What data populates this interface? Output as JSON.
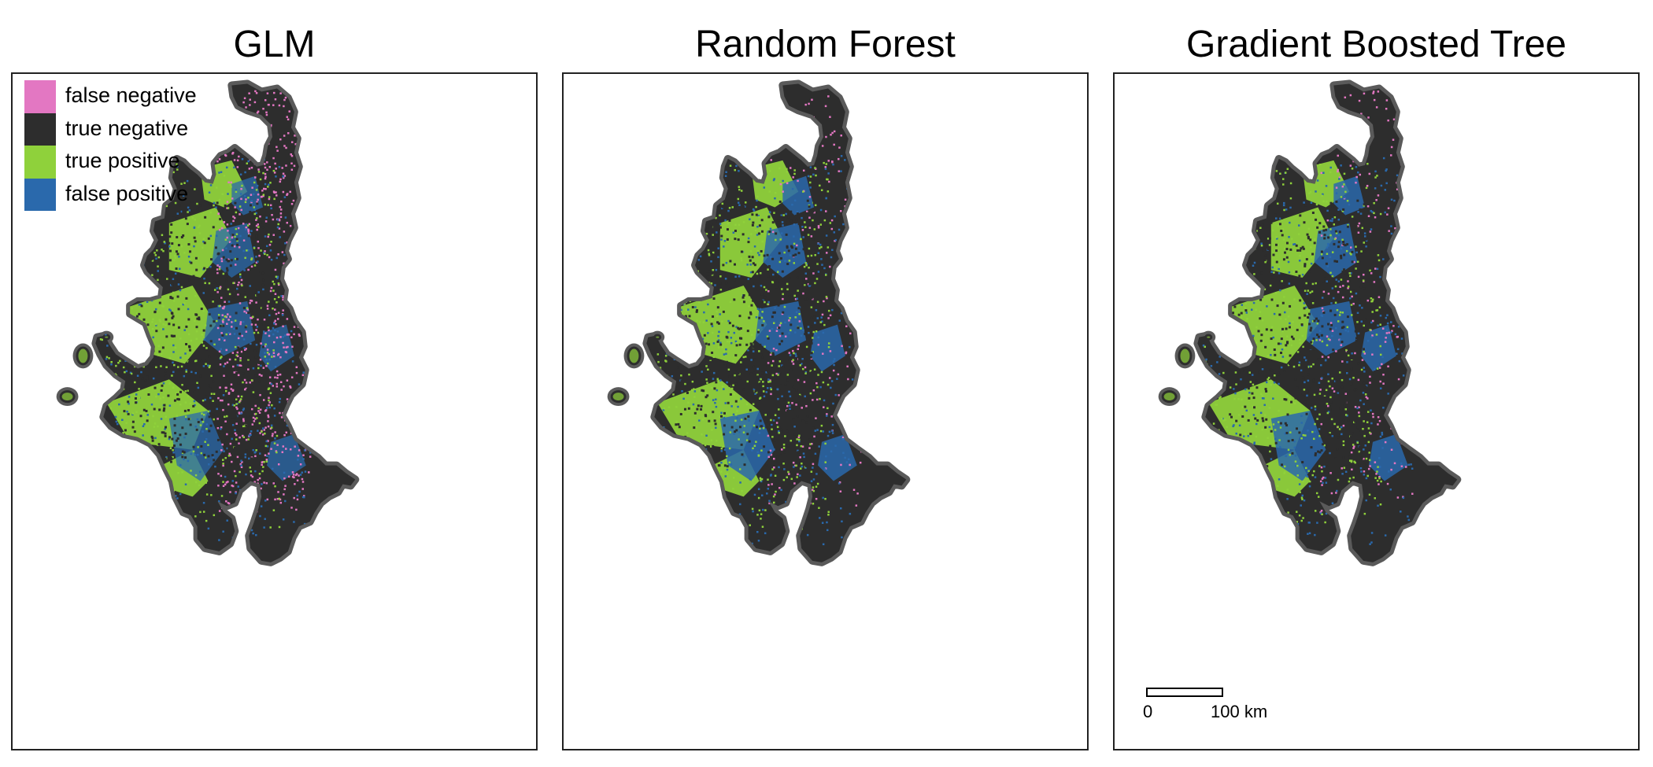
{
  "panels": [
    {
      "title": "GLM"
    },
    {
      "title": "Random Forest"
    },
    {
      "title": "Gradient Boosted Tree"
    }
  ],
  "legend": {
    "items": [
      {
        "label": "false negative",
        "color": "#e377c2"
      },
      {
        "label": "true negative",
        "color": "#2d2d2d"
      },
      {
        "label": "true positive",
        "color": "#8fd13b"
      },
      {
        "label": "false positive",
        "color": "#2a69ac"
      }
    ]
  },
  "scale_bar": {
    "start_label": "0",
    "end_label": "100 km"
  },
  "colors": {
    "outline": "#5a5a5a",
    "true_negative": "#2d2d2d",
    "true_positive": "#8fd13b",
    "false_positive": "#2a69ac",
    "false_negative": "#e377c2"
  }
}
